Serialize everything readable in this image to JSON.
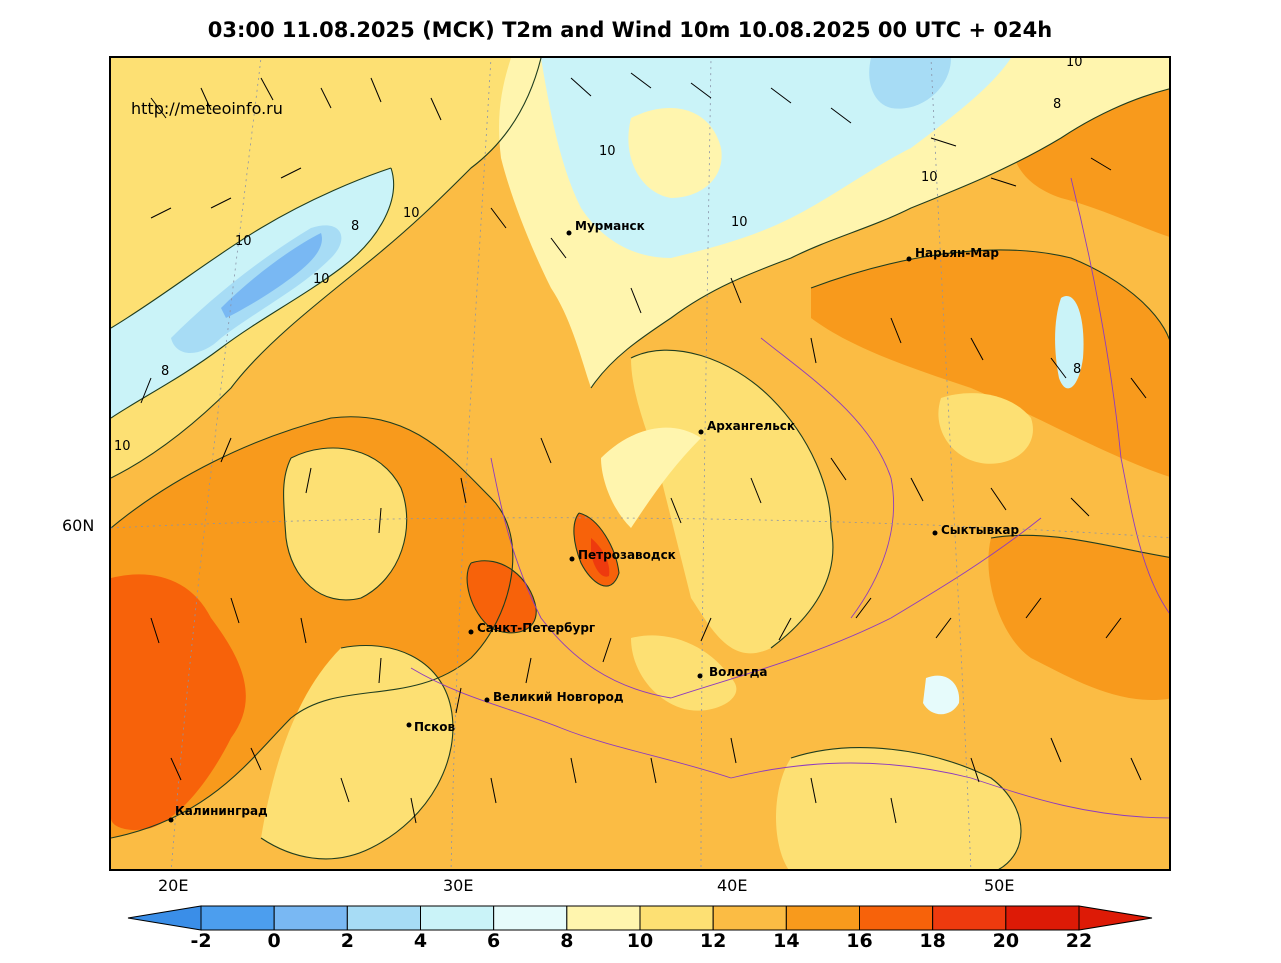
{
  "title": "03:00 11.08.2025 (МСК) T2m and Wind 10m 10.08.2025 00 UTC + 024h",
  "watermark": "http://meteoinfo.ru",
  "axes": {
    "lon_labels": [
      "20E",
      "30E",
      "40E",
      "50E"
    ],
    "lat_labels": [
      "60N"
    ]
  },
  "cities": [
    {
      "name": "Мурманск"
    },
    {
      "name": "Нарьян-Мар"
    },
    {
      "name": "Архангельск"
    },
    {
      "name": "Сыктывкар"
    },
    {
      "name": "Петрозаводск"
    },
    {
      "name": "Санкт-Петербург"
    },
    {
      "name": "Вологда"
    },
    {
      "name": "Великий Новгород"
    },
    {
      "name": "Псков"
    },
    {
      "name": "Калининград"
    }
  ],
  "contour_labels": [
    "10",
    "8",
    "10",
    "10",
    "10",
    "10",
    "8",
    "10",
    "10",
    "8",
    "8",
    "10"
  ],
  "colorbar": {
    "ticks": [
      "-2",
      "0",
      "2",
      "4",
      "6",
      "8",
      "10",
      "12",
      "14",
      "16",
      "18",
      "20",
      "22"
    ],
    "colors": [
      "#3a8ee8",
      "#4c9eee",
      "#79b8f3",
      "#a7dcf5",
      "#caf3f8",
      "#e6fbfb",
      "#fff5ae",
      "#fde073",
      "#fbbc44",
      "#f89a1c",
      "#f7620a",
      "#ee3a0e",
      "#dd1a06",
      "#3a8ee8"
    ]
  }
}
